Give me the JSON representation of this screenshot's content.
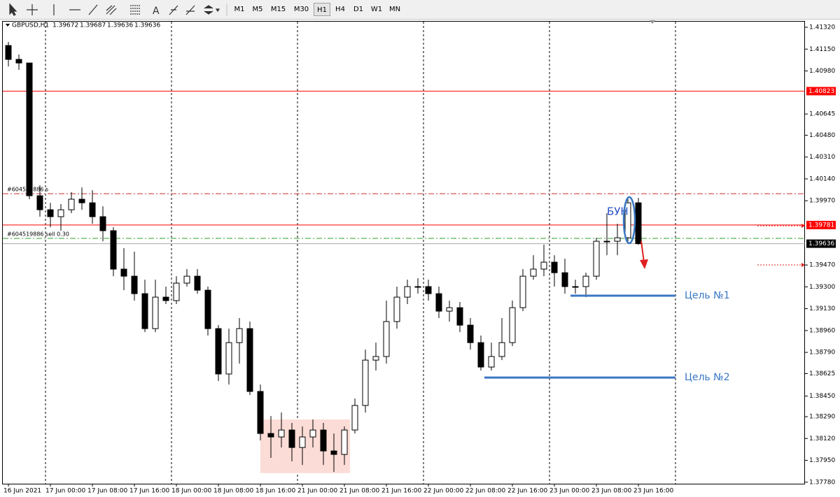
{
  "toolbar": {
    "timeframes": [
      "M1",
      "M5",
      "M15",
      "M30",
      "H1",
      "H4",
      "D1",
      "W1",
      "MN"
    ],
    "active": "H1"
  },
  "chart_data": {
    "type": "candlestick",
    "symbol": "GBPUSD,H1",
    "quote": [
      1.39672,
      1.39687,
      1.39636,
      1.39636
    ],
    "categories": [
      "16 Jun 2021",
      null,
      null,
      null,
      "17 Jun 00:00",
      null,
      null,
      null,
      "17 Jun 08:00",
      null,
      null,
      null,
      "17 Jun 16:00",
      null,
      null,
      null,
      "18 Jun 00:00",
      null,
      null,
      null,
      "18 Jun 08:00",
      null,
      null,
      null,
      "18 Jun 16:00",
      null,
      null,
      null,
      "21 Jun 00:00",
      null,
      null,
      null,
      "21 Jun 08:00",
      null,
      null,
      null,
      "21 Jun 16:00",
      null,
      null,
      null,
      "22 Jun 00:00",
      null,
      null,
      null,
      "22 Jun 08:00",
      null,
      null,
      null,
      "22 Jun 16:00",
      null,
      null,
      null,
      "23 Jun 00:00",
      null,
      null,
      null,
      "23 Jun 08:00",
      null,
      null,
      null,
      "23 Jun 16:00"
    ],
    "open": [
      1.41178,
      1.4107,
      1.41042,
      1.40009,
      1.399,
      1.39846,
      1.399,
      1.39982,
      1.39954,
      1.39846,
      1.39737,
      1.39438,
      1.39383,
      1.39247,
      1.38975,
      1.3922,
      1.39193,
      1.39329,
      1.39383,
      1.39274,
      1.38975,
      1.38622,
      1.38866,
      1.38975,
      1.38486,
      1.38159,
      1.38132,
      1.38186,
      1.3805,
      1.38132,
      1.38186,
      1.38023,
      1.37996,
      1.38186,
      1.38377,
      1.3873,
      1.38758,
      1.3903,
      1.3922,
      1.39302,
      1.39302,
      1.39247,
      1.39111,
      1.39138,
      1.39002,
      1.38866,
      1.38676,
      1.38758,
      1.38866,
      1.39138,
      1.39383,
      1.39438,
      1.39492,
      1.3941,
      1.39302,
      1.39302,
      1.39383,
      1.39655,
      1.39655,
      1.39682,
      1.39954
    ],
    "high": [
      1.41206,
      1.41108,
      1.41042,
      1.4009,
      1.39954,
      1.39944,
      1.40036,
      1.40074,
      1.40052,
      1.39927,
      1.39764,
      1.39601,
      1.39574,
      1.39356,
      1.39356,
      1.39302,
      1.39383,
      1.39438,
      1.39438,
      1.39302,
      1.39002,
      1.38975,
      1.39057,
      1.3903,
      1.3854,
      1.38295,
      1.38322,
      1.38241,
      1.38214,
      1.38268,
      1.38241,
      1.38159,
      1.38214,
      1.38431,
      1.38812,
      1.38866,
      1.39193,
      1.39302,
      1.39356,
      1.39367,
      1.39356,
      1.39302,
      1.39193,
      1.39182,
      1.39057,
      1.38921,
      1.38866,
      1.39057,
      1.39193,
      1.39438,
      1.39546,
      1.39628,
      1.39546,
      1.39519,
      1.39356,
      1.3941,
      1.39682,
      1.39873,
      1.39791,
      1.39982,
      1.39992
    ],
    "low": [
      1.41015,
      1.40988,
      1.39982,
      1.39846,
      1.39764,
      1.39737,
      1.39873,
      1.399,
      1.39791,
      1.39655,
      1.39383,
      1.39274,
      1.39193,
      1.38948,
      1.38948,
      1.39166,
      1.39166,
      1.39302,
      1.39247,
      1.38921,
      1.38567,
      1.3854,
      1.38703,
      1.38458,
      1.38105,
      1.37969,
      1.3805,
      1.37942,
      1.37914,
      1.3805,
      1.37914,
      1.3786,
      1.37914,
      1.38159,
      1.38322,
      1.38649,
      1.38703,
      1.38975,
      1.39166,
      1.39247,
      1.39193,
      1.39057,
      1.3903,
      1.38948,
      1.38812,
      1.38649,
      1.38649,
      1.3873,
      1.38839,
      1.39111,
      1.39356,
      1.39383,
      1.39302,
      1.39247,
      1.39247,
      1.3922,
      1.39356,
      1.39546,
      1.39546,
      1.39655,
      1.39628
    ],
    "close": [
      1.4107,
      1.41042,
      1.40009,
      1.399,
      1.39846,
      1.399,
      1.39982,
      1.39954,
      1.39846,
      1.39737,
      1.39438,
      1.39383,
      1.39247,
      1.38975,
      1.3922,
      1.39193,
      1.39329,
      1.39383,
      1.39274,
      1.38975,
      1.38622,
      1.38866,
      1.38975,
      1.38486,
      1.38159,
      1.38132,
      1.38186,
      1.3805,
      1.38132,
      1.38186,
      1.38023,
      1.37996,
      1.38186,
      1.38377,
      1.3873,
      1.38758,
      1.3903,
      1.3922,
      1.39302,
      1.39302,
      1.39247,
      1.39111,
      1.39138,
      1.39002,
      1.38866,
      1.38676,
      1.38758,
      1.38866,
      1.39138,
      1.39383,
      1.39438,
      1.39492,
      1.3941,
      1.39302,
      1.39302,
      1.39383,
      1.39655,
      1.39655,
      1.39682,
      1.39954,
      1.39636
    ],
    "ylim": [
      1.37768,
      1.41369
    ],
    "yticks": [
      {
        "value": 1.4132,
        "label": "1.41320"
      },
      {
        "value": 1.4115,
        "label": "1.41150"
      },
      {
        "value": 1.4098,
        "label": "1.40980"
      },
      1.40645,
      {
        "value": 1.4048,
        "label": "1.40480"
      },
      {
        "value": 1.4031,
        "label": "1.40310"
      },
      {
        "value": 1.4014,
        "label": "1.40140"
      },
      {
        "value": 1.3997,
        "label": "1.39970"
      },
      {
        "value": 1.3947,
        "label": "1.39470"
      },
      {
        "value": 1.393,
        "label": "1.39300"
      },
      {
        "value": 1.3913,
        "label": "1.39130"
      },
      {
        "value": 1.3896,
        "label": "1.38960"
      },
      {
        "value": 1.3879,
        "label": "1.38790"
      },
      1.38625,
      {
        "value": 1.3845,
        "label": "1.38450"
      },
      {
        "value": 1.3829,
        "label": "1.38290"
      },
      {
        "value": 1.3812,
        "label": "1.38120"
      },
      {
        "value": 1.3795,
        "label": "1.37950"
      },
      {
        "value": 1.3778,
        "label": "1.37780"
      }
    ],
    "levels": [
      {
        "value": 1.40823,
        "color": "#ff0000",
        "style": "solid",
        "tag_color": "#ff0000"
      },
      {
        "value": 1.40025,
        "color": "#c83030",
        "style": "dashdot",
        "label": "#604519886 s"
      },
      {
        "value": 1.39781,
        "color": "#ff0000",
        "style": "solid",
        "tag_color": "#ff0000"
      },
      {
        "value": 1.39677,
        "color": "#2ca02c",
        "style": "dashdot",
        "label": "#604519886 sell 0.30"
      },
      {
        "value": 1.39636,
        "color": "#a8a8a8",
        "style": "solid",
        "tag_color": "#000000"
      }
    ],
    "targets": [
      {
        "label": "Цель №1",
        "value": 1.39231
      },
      {
        "label": "Цель №2",
        "value": 1.38594
      }
    ],
    "target_color": "#3a78c3",
    "zone": {
      "high": 1.38268,
      "low": 1.37851,
      "color": "#fcdcd6"
    },
    "annotation": "БУН"
  }
}
